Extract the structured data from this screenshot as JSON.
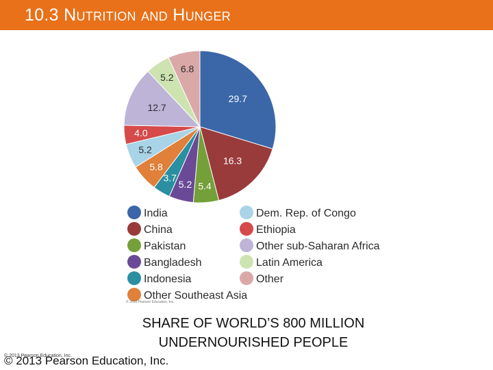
{
  "header": {
    "title": "10.3 Nutrition and Hunger",
    "bar_color": "#e8711a"
  },
  "chart_data": {
    "type": "pie",
    "title": "",
    "slices": [
      {
        "label": "India",
        "value": 29.7,
        "color": "#3b67a8",
        "label_color": "#ffffff"
      },
      {
        "label": "China",
        "value": 16.3,
        "color": "#9a3b3b",
        "label_color": "#ffffff"
      },
      {
        "label": "Pakistan",
        "value": 5.4,
        "color": "#74a039",
        "label_color": "#ffffff"
      },
      {
        "label": "Bangladesh",
        "value": 5.2,
        "color": "#6a4a96",
        "label_color": "#ffffff"
      },
      {
        "label": "Indonesia",
        "value": 3.7,
        "color": "#2a8fa0",
        "label_color": "#ffffff"
      },
      {
        "label": "Other Southeast Asia",
        "value": 5.8,
        "color": "#e0803a",
        "label_color": "#ffffff"
      },
      {
        "label": "Dem. Rep. of Congo",
        "value": 5.2,
        "color": "#a9d3e6",
        "label_color": "#2b2b2b"
      },
      {
        "label": "Ethiopia",
        "value": 4.0,
        "color": "#d64a4a",
        "label_color": "#ffffff"
      },
      {
        "label": "Other sub-Saharan Africa",
        "value": 12.7,
        "color": "#bdb4d8",
        "label_color": "#2b2b2b"
      },
      {
        "label": "Latin America",
        "value": 5.2,
        "color": "#cde3b0",
        "label_color": "#2b2b2b"
      },
      {
        "label": "Other",
        "value": 6.8,
        "color": "#dba8a8",
        "label_color": "#2b2b2b"
      }
    ],
    "legend_placement": "bottom",
    "legend_columns": [
      [
        "India",
        "China",
        "Pakistan",
        "Bangladesh",
        "Indonesia",
        "Other Southeast Asia"
      ],
      [
        "Dem. Rep. of Congo",
        "Ethiopia",
        "Other sub-Saharan Africa",
        "Latin America",
        "Other"
      ]
    ]
  },
  "figure_copyright": "© 2013 Pearson Education, Inc.",
  "caption": {
    "line1": "SHARE OF WORLD’S 800 MILLION",
    "line2": "UNDERNOURISHED PEOPLE"
  },
  "footer": {
    "copyright": "© 2013 Pearson Education, Inc.",
    "copyright_small": "© 2013 Pearson Education, Inc."
  }
}
